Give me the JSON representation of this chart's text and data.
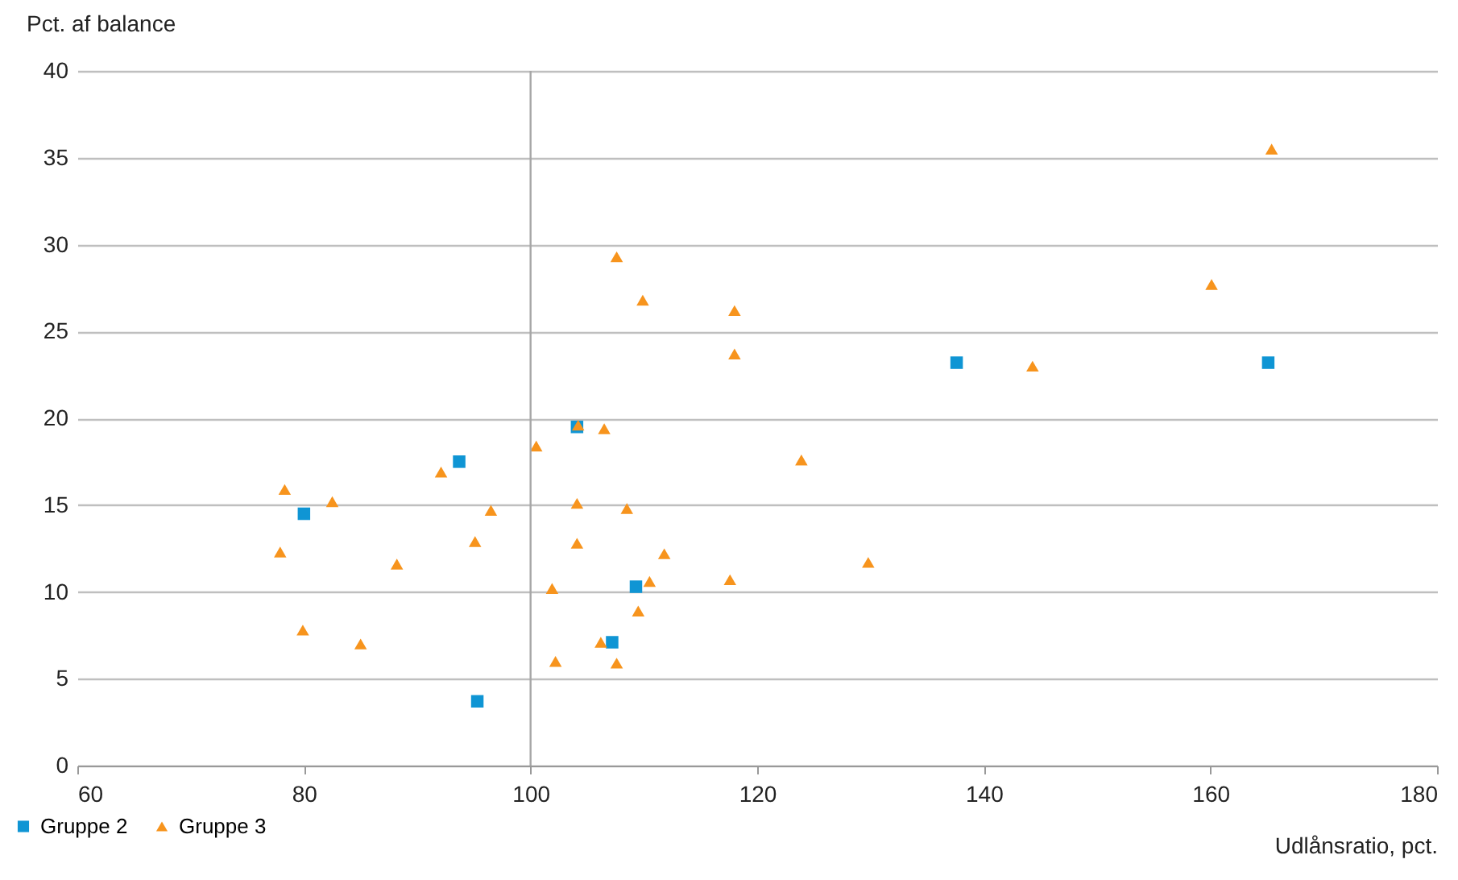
{
  "chart_data": {
    "type": "scatter",
    "xlabel": "Udlånsratio, pct.",
    "ylabel": "Pct. af balance",
    "xlim": [
      60,
      180
    ],
    "xticks": [
      60,
      80,
      100,
      120,
      140,
      160,
      180
    ],
    "ylim": [
      0,
      40
    ],
    "yticks": [
      0,
      5,
      10,
      15,
      20,
      25,
      30,
      35,
      40
    ],
    "grid": "y",
    "legend": "bottom left",
    "ref_lines": [
      {
        "axis": "x",
        "value": 100,
        "color": "#a6a6a6"
      }
    ],
    "series": [
      {
        "name": "Gruppe 2",
        "color": "#0f95d4",
        "marker": "square",
        "x": [
          80.0,
          93.7,
          104.1,
          109.3,
          107.2,
          95.3,
          137.6,
          165.1
        ],
        "values": [
          14.5,
          17.5,
          19.5,
          10.3,
          7.1,
          3.7,
          23.2,
          23.2
        ]
      },
      {
        "name": "Gruppe 3",
        "color": "#f7941d",
        "marker": "triangle",
        "x": [
          78.3,
          77.9,
          82.5,
          79.9,
          85.0,
          88.2,
          92.1,
          95.1,
          96.5,
          100.5,
          101.9,
          102.2,
          104.2,
          104.1,
          104.1,
          106.5,
          106.2,
          107.6,
          107.6,
          108.5,
          109.5,
          109.9,
          110.5,
          111.8,
          118.0,
          118.0,
          117.6,
          123.9,
          129.8,
          144.3,
          160.1,
          165.4
        ],
        "values": [
          15.9,
          12.3,
          15.2,
          7.8,
          7.0,
          11.6,
          16.9,
          12.9,
          14.7,
          18.4,
          10.2,
          6.0,
          19.6,
          15.1,
          12.8,
          19.4,
          7.1,
          29.3,
          5.9,
          14.8,
          8.9,
          26.8,
          10.6,
          12.2,
          26.2,
          23.7,
          10.7,
          17.6,
          11.7,
          23.0,
          27.7,
          35.5
        ]
      }
    ]
  }
}
